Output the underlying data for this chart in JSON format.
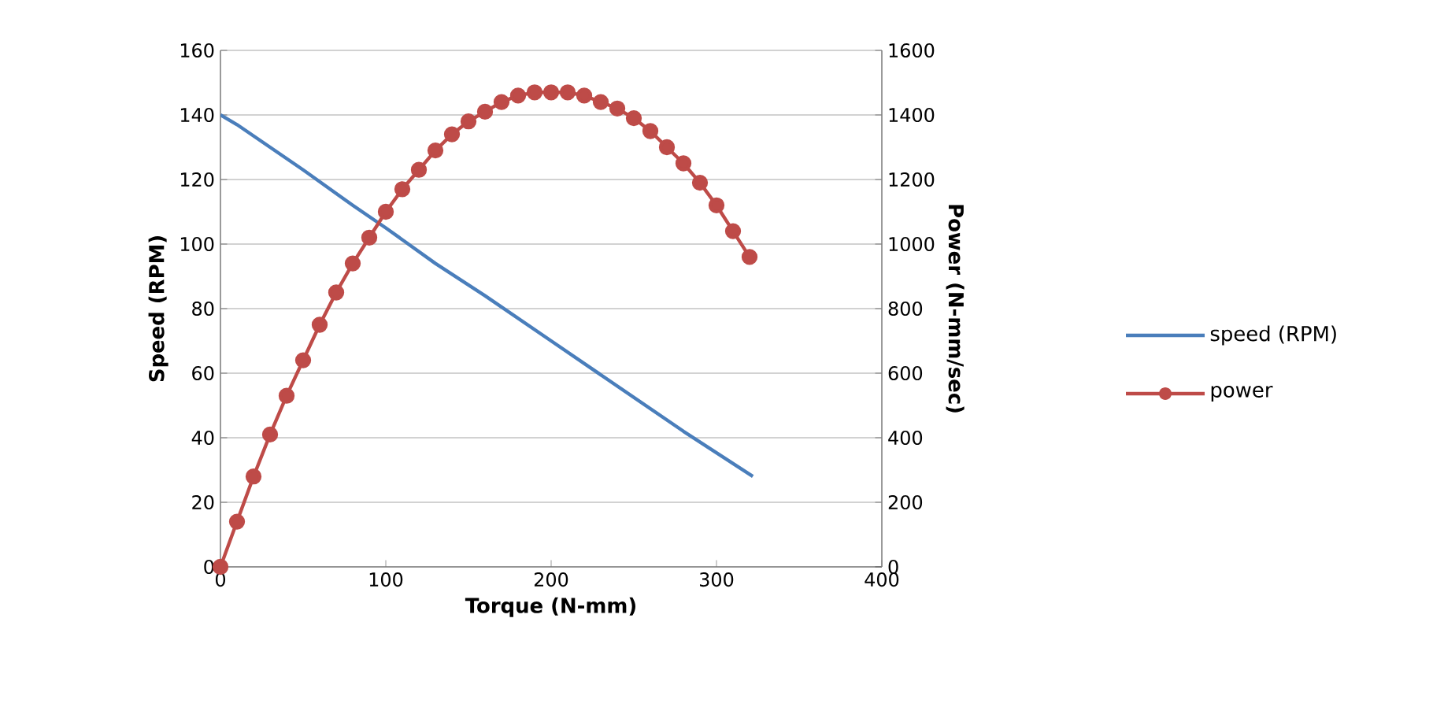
{
  "chart_data": {
    "type": "line",
    "xlabel": "Torque (N-mm)",
    "ylabel": "Speed (RPM)",
    "y2label": "Power (N-mm/sec)",
    "xlim": [
      0,
      400
    ],
    "xticks": [
      0,
      100,
      200,
      300,
      400
    ],
    "ylim": [
      0,
      160
    ],
    "yticks": [
      0,
      20,
      40,
      60,
      80,
      100,
      120,
      140,
      160
    ],
    "y2lim": [
      0,
      1600
    ],
    "y2ticks": [
      0,
      200,
      400,
      600,
      800,
      1000,
      1200,
      1400,
      1600
    ],
    "grid": "y",
    "legend": "right",
    "line_style": "solid",
    "series": [
      {
        "name": "speed (RPM)",
        "color": "#4a7ebb",
        "marker": "none",
        "x": [
          0,
          10,
          30,
          50,
          80,
          100,
          130,
          160,
          200,
          240,
          280,
          322
        ],
        "values": [
          140,
          137,
          130,
          123,
          112,
          105,
          94,
          84,
          70,
          56,
          42,
          28
        ]
      },
      {
        "name": "power",
        "color": "#be4b48",
        "marker": "circle",
        "axis": "y2",
        "x": [
          0,
          10,
          20,
          30,
          40,
          50,
          60,
          70,
          80,
          90,
          100,
          110,
          120,
          130,
          140,
          150,
          160,
          170,
          180,
          190,
          200,
          210,
          220,
          230,
          240,
          250,
          260,
          270,
          280,
          290,
          300,
          310,
          320
        ],
        "values": [
          0,
          140,
          280,
          410,
          530,
          640,
          750,
          850,
          940,
          1020,
          1100,
          1170,
          1230,
          1290,
          1340,
          1380,
          1410,
          1440,
          1460,
          1470,
          1470,
          1470,
          1460,
          1440,
          1420,
          1390,
          1350,
          1300,
          1250,
          1190,
          1120,
          1040,
          960
        ]
      }
    ]
  }
}
